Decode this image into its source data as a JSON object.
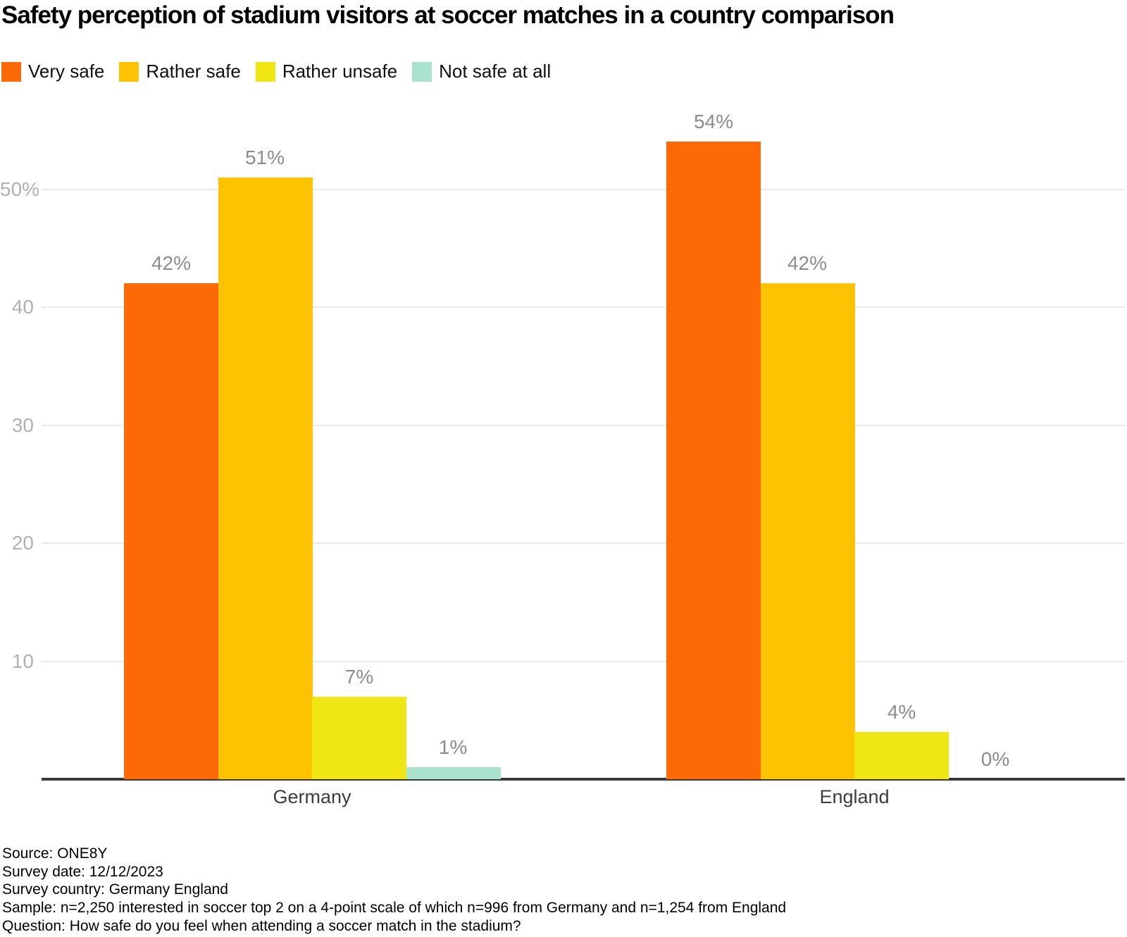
{
  "title": "Safety perception of stadium visitors at soccer matches in a country comparison",
  "chart_data": {
    "type": "bar",
    "categories": [
      "Germany",
      "England"
    ],
    "series": [
      {
        "name": "Very safe",
        "color": "#fb6a07",
        "values": [
          42,
          54
        ]
      },
      {
        "name": "Rather safe",
        "color": "#ffc303",
        "values": [
          51,
          42
        ]
      },
      {
        "name": "Rather unsafe",
        "color": "#f0e616",
        "values": [
          7,
          4
        ]
      },
      {
        "name": "Not safe at all",
        "color": "#a9e3ce",
        "values": [
          1,
          0
        ]
      }
    ],
    "value_suffix": "%",
    "y_ticks": [
      10,
      20,
      30,
      40,
      50
    ],
    "y_tick_labels": [
      "10",
      "20",
      "30",
      "40",
      "50%"
    ],
    "ylim": [
      0,
      57.5
    ],
    "grid": true,
    "legend_position": "top",
    "bar_value_labels": true
  },
  "footer": {
    "lines": [
      "Source: ONE8Y",
      "Survey date: 12/12/2023",
      "Survey country: Germany England",
      "Sample: n=2,250 interested in soccer top 2 on a 4-point scale of which n=996 from Germany and n=1,254 from England",
      "Question: How safe do you feel when attending a soccer match in the stadium?"
    ]
  },
  "colors": {
    "gridline": "#e9e9e9",
    "axis_line": "#3a3a3a",
    "tick_label": "#b1b1b1",
    "value_label": "#8c8c8c",
    "category_label": "#3c3c3c"
  }
}
